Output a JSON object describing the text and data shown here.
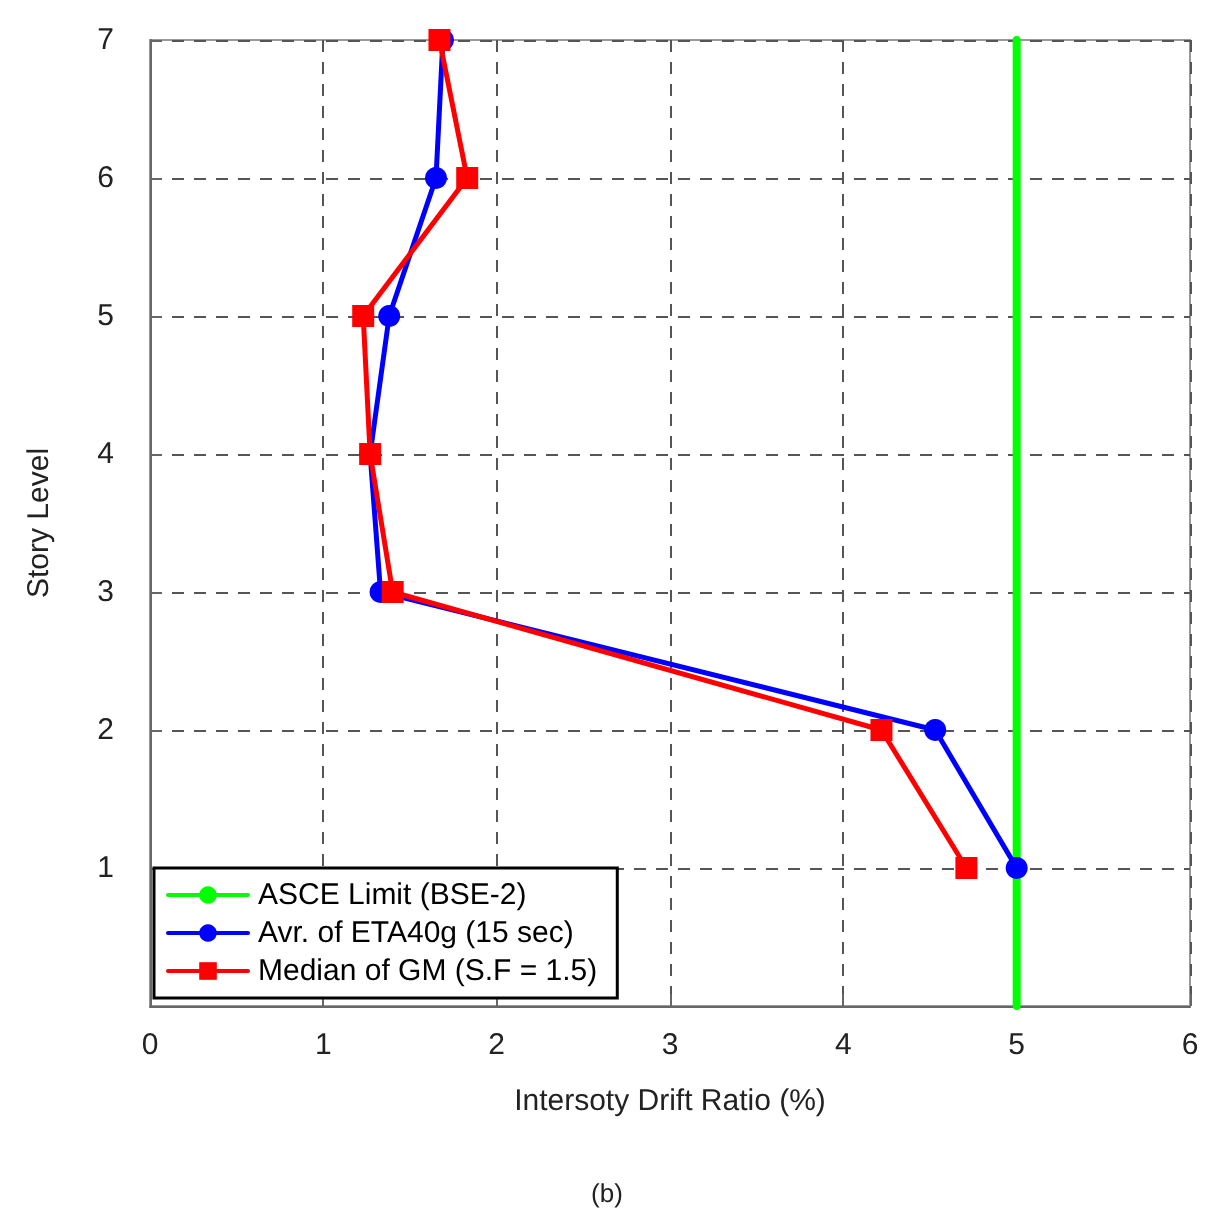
{
  "chart_data": {
    "type": "line",
    "xlabel": "Intersoty Drift Ratio (%)",
    "ylabel": "Story Level",
    "annotations": [
      "(b)"
    ],
    "xlim": [
      0,
      6
    ],
    "xticks": [
      0,
      1,
      2,
      3,
      4,
      5,
      6
    ],
    "ylim": [
      0,
      7
    ],
    "yticks": [
      1,
      2,
      3,
      4,
      5,
      6,
      7
    ],
    "grid": true,
    "legend": "bottom left",
    "line_style": "solid",
    "series": [
      {
        "name": "ASCE Limit (BSE-2)",
        "color": "#00ff00",
        "marker": "none",
        "x": [
          5,
          5
        ],
        "values": [
          0,
          7
        ]
      },
      {
        "name": "Avr. of ETA40g (15 sec)",
        "color": "#0000ff",
        "marker": "circle",
        "x": [
          5.0,
          4.53,
          1.33,
          1.27,
          1.38,
          1.65,
          1.69
        ],
        "values": [
          1,
          2,
          3,
          4,
          5,
          6,
          7
        ]
      },
      {
        "name": "Median of GM (S.F = 1.5)",
        "color": "#ff0000",
        "marker": "square",
        "x": [
          4.71,
          4.22,
          1.4,
          1.27,
          1.23,
          1.83,
          1.67
        ],
        "values": [
          1,
          2,
          3,
          4,
          5,
          6,
          7
        ]
      }
    ]
  }
}
